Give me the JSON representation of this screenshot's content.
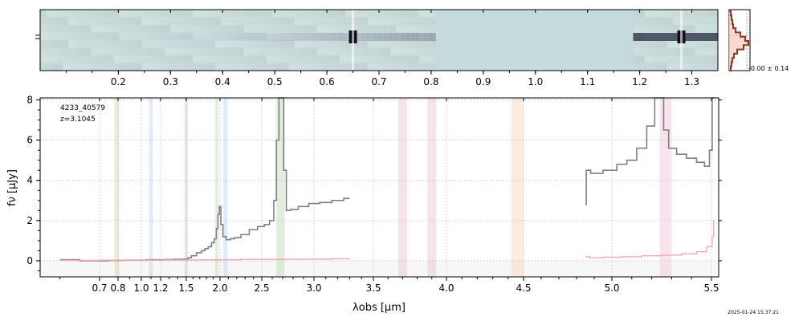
{
  "chart_data": [
    {
      "type": "heatmap",
      "panel": "2D spectrum",
      "x_tick_labels": [
        "0.2",
        "0.3",
        "0.4",
        "0.5",
        "0.6",
        "0.7",
        "0.8",
        "0.9",
        "1.0",
        "1.1",
        "1.2",
        "1.3"
      ],
      "x_tick_values": [
        0.2,
        0.3,
        0.4,
        0.5,
        0.6,
        0.7,
        0.8,
        0.9,
        1.0,
        1.1,
        1.2,
        1.3
      ],
      "xlim": [
        0.05,
        1.35
      ],
      "gap": [
        0.81,
        1.185
      ],
      "bright_features_at": [
        0.65,
        1.28
      ],
      "colormap": "bone_r"
    },
    {
      "type": "histogram",
      "panel": "pixel histogram",
      "annotation": "-0.00 ± 0.14",
      "color": "#8b3a2a",
      "fill": "#f8d0c0"
    },
    {
      "type": "line",
      "panel": "1D spectrum",
      "label_id": "4233_40579",
      "label_z": "z=3.1045",
      "xlabel": "λobs [μm]",
      "ylabel": "fν [μJy]",
      "ylim": [
        -0.8,
        8.1
      ],
      "y_ticks": [
        0,
        2,
        4,
        6,
        8
      ],
      "x_tick_labels": [
        "0.7",
        "0.8",
        "1.0",
        "1.2",
        "1.5",
        "2.0",
        "2.5",
        "3.0",
        "3.5",
        "4.0",
        "4.5",
        "5.0",
        "5.5"
      ],
      "x_tick_values": [
        0.7,
        0.8,
        1.0,
        1.2,
        1.5,
        2.0,
        2.5,
        3.0,
        3.5,
        4.0,
        4.5,
        5.0,
        5.5
      ],
      "grid": true,
      "series": [
        {
          "color": "#808080",
          "segments": [
            {
              "x": [
                0.6,
                0.7,
                0.8,
                0.9,
                1.0,
                1.1,
                1.2,
                1.3,
                1.4,
                1.5,
                1.55,
                1.6,
                1.7,
                1.75,
                1.8,
                1.85,
                1.9,
                1.93,
                1.96,
                1.98,
                2.0,
                2.02,
                2.05,
                2.1,
                2.15,
                2.2,
                2.3,
                2.4,
                2.5,
                2.55,
                2.6,
                2.63,
                2.65,
                2.68,
                2.7,
                2.72,
                2.75,
                2.8,
                2.9,
                3.0,
                3.1,
                3.2,
                3.3
              ],
              "y": [
                0.05,
                0.0,
                0.02,
                0.03,
                0.03,
                0.05,
                0.05,
                0.06,
                0.07,
                0.08,
                0.15,
                0.25,
                0.4,
                0.5,
                0.6,
                0.7,
                0.9,
                1.1,
                1.6,
                2.3,
                2.7,
                1.8,
                1.2,
                1.05,
                1.1,
                1.15,
                1.3,
                1.55,
                1.7,
                1.8,
                2.0,
                3.0,
                6.0,
                8.1,
                8.1,
                4.5,
                2.5,
                2.55,
                2.7,
                2.85,
                2.9,
                3.0,
                3.1
              ]
            },
            {
              "x": [
                4.85,
                4.86,
                4.9,
                5.0,
                5.05,
                5.1,
                5.15,
                5.2,
                5.23,
                5.25,
                5.27,
                5.3,
                5.35,
                5.4,
                5.45,
                5.48,
                5.5,
                5.51,
                5.52
              ],
              "y": [
                2.8,
                4.5,
                4.35,
                4.5,
                4.8,
                5.0,
                5.6,
                6.7,
                8.1,
                8.1,
                6.5,
                5.6,
                5.3,
                5.1,
                4.9,
                4.7,
                5.5,
                8.1,
                8.1
              ]
            }
          ]
        },
        {
          "color": "#f4a8a8",
          "segments": [
            {
              "x": [
                0.6,
                1.0,
                1.5,
                2.0,
                2.5,
                3.0,
                3.3
              ],
              "y": [
                0.02,
                0.03,
                0.04,
                0.05,
                0.07,
                0.08,
                0.1
              ]
            },
            {
              "x": [
                4.85,
                4.9,
                5.0,
                5.1,
                5.2,
                5.3,
                5.4,
                5.45,
                5.5,
                5.51,
                5.52
              ],
              "y": [
                0.2,
                0.15,
                0.18,
                0.2,
                0.25,
                0.28,
                0.35,
                0.45,
                0.7,
                1.2,
                2.0
              ]
            }
          ]
        }
      ],
      "line_bands": [
        {
          "x": [
            0.78,
            0.81
          ],
          "color": "#dcd6a8"
        },
        {
          "x": [
            1.08,
            1.12
          ],
          "color": "#b8d4f0"
        },
        {
          "x": [
            1.48,
            1.52
          ],
          "color": "#d4c4e8"
        },
        {
          "x": [
            1.93,
            1.97
          ],
          "color": "#b8dcb0"
        },
        {
          "x": [
            2.04,
            2.09
          ],
          "color": "#b8d4f0"
        },
        {
          "x": [
            2.64,
            2.72
          ],
          "color": "#b8dcb0"
        },
        {
          "x": [
            3.67,
            3.73
          ],
          "color": "#e8c4c8"
        },
        {
          "x": [
            3.87,
            3.93
          ],
          "color": "#e8c4c8"
        },
        {
          "x": [
            4.42,
            4.5
          ],
          "color": "#f8d4b8"
        },
        {
          "x": [
            5.24,
            5.3
          ],
          "color": "#f0c4dc"
        }
      ]
    }
  ],
  "timestamp": "2025-01-24 15:37:21"
}
